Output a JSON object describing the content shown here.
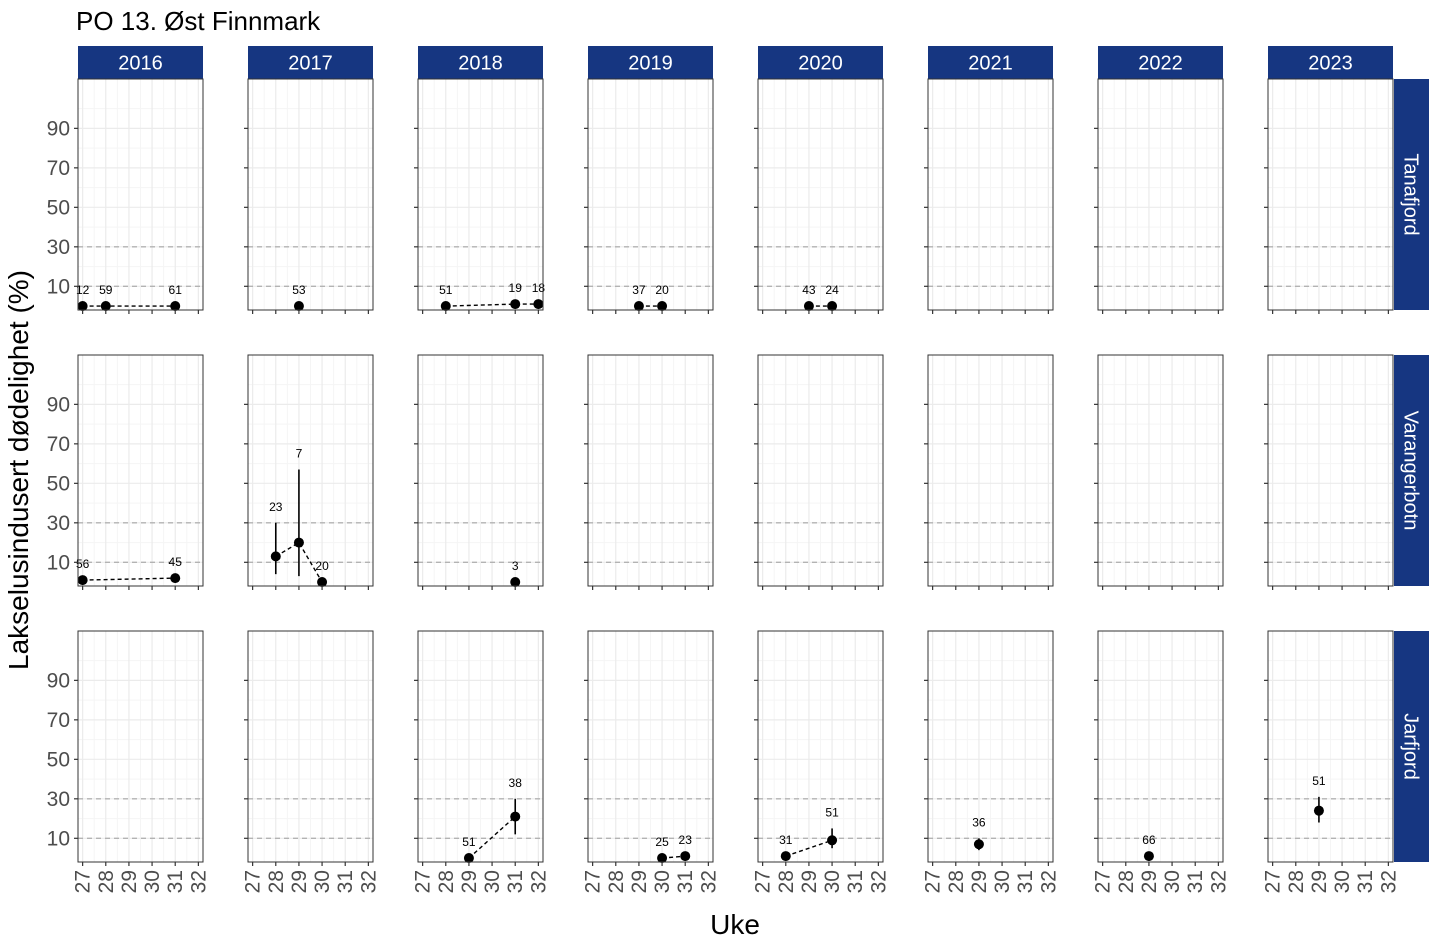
{
  "chart_data": {
    "type": "scatter",
    "title": "PO 13. Øst Finnmark",
    "xlabel": "Uke",
    "ylabel": "Lakselusindusert dødelighet (%)",
    "columns": [
      "2016",
      "2017",
      "2018",
      "2019",
      "2020",
      "2021",
      "2022",
      "2023"
    ],
    "rows": [
      "Tanafjord",
      "Varangerbotn",
      "Jarfjord"
    ],
    "xlim": [
      26.8,
      32.2
    ],
    "ylim": [
      -2,
      115
    ],
    "x_ticks": [
      27,
      28,
      29,
      30,
      31,
      32
    ],
    "x_tick_labels": [
      "27",
      "28",
      "29",
      "30",
      "31",
      "32"
    ],
    "y_ticks": [
      10,
      30,
      50,
      70,
      90
    ],
    "y_tick_labels": [
      "10",
      "30",
      "50",
      "70",
      "90"
    ],
    "reference_lines": [
      10,
      30
    ],
    "grid": true,
    "series": [
      {
        "row": "Tanafjord",
        "col": "2016",
        "points": [
          {
            "x": 27,
            "y": 0,
            "label": "12"
          },
          {
            "x": 28,
            "y": 0,
            "label": "59"
          },
          {
            "x": 31,
            "y": 0,
            "label": "61"
          }
        ]
      },
      {
        "row": "Tanafjord",
        "col": "2017",
        "points": [
          {
            "x": 29,
            "y": 0,
            "label": "53"
          }
        ]
      },
      {
        "row": "Tanafjord",
        "col": "2018",
        "points": [
          {
            "x": 28,
            "y": 0,
            "label": "51"
          },
          {
            "x": 31,
            "y": 1,
            "label": "19"
          },
          {
            "x": 32,
            "y": 1,
            "label": "18"
          }
        ]
      },
      {
        "row": "Tanafjord",
        "col": "2019",
        "points": [
          {
            "x": 29,
            "y": 0,
            "label": "37"
          },
          {
            "x": 30,
            "y": 0,
            "label": "20"
          }
        ]
      },
      {
        "row": "Tanafjord",
        "col": "2020",
        "points": [
          {
            "x": 29,
            "y": 0,
            "label": "43"
          },
          {
            "x": 30,
            "y": 0,
            "label": "24"
          }
        ]
      },
      {
        "row": "Varangerbotn",
        "col": "2016",
        "points": [
          {
            "x": 27,
            "y": 1,
            "label": "56"
          },
          {
            "x": 31,
            "y": 2,
            "label": "45"
          }
        ]
      },
      {
        "row": "Varangerbotn",
        "col": "2017",
        "points": [
          {
            "x": 28,
            "y": 13,
            "ymin": 4,
            "ymax": 30,
            "label": "23"
          },
          {
            "x": 29,
            "y": 20,
            "ymin": 3,
            "ymax": 57,
            "label": "7"
          },
          {
            "x": 30,
            "y": 0,
            "label": "20"
          }
        ]
      },
      {
        "row": "Varangerbotn",
        "col": "2018",
        "points": [
          {
            "x": 31,
            "y": 0,
            "label": "3"
          }
        ]
      },
      {
        "row": "Jarfjord",
        "col": "2018",
        "points": [
          {
            "x": 29,
            "y": 0,
            "label": "51"
          },
          {
            "x": 31,
            "y": 21,
            "ymin": 12,
            "ymax": 30,
            "label": "38"
          }
        ]
      },
      {
        "row": "Jarfjord",
        "col": "2019",
        "points": [
          {
            "x": 30,
            "y": 0,
            "label": "25"
          },
          {
            "x": 31,
            "y": 1,
            "label": "23"
          }
        ]
      },
      {
        "row": "Jarfjord",
        "col": "2020",
        "points": [
          {
            "x": 28,
            "y": 1,
            "label": "31"
          },
          {
            "x": 30,
            "y": 9,
            "ymin": 5,
            "ymax": 15,
            "label": "51"
          }
        ]
      },
      {
        "row": "Jarfjord",
        "col": "2021",
        "points": [
          {
            "x": 29,
            "y": 7,
            "ymin": 4,
            "ymax": 10,
            "label": "36"
          }
        ]
      },
      {
        "row": "Jarfjord",
        "col": "2022",
        "points": [
          {
            "x": 29,
            "y": 1,
            "label": "66"
          }
        ]
      },
      {
        "row": "Jarfjord",
        "col": "2023",
        "points": [
          {
            "x": 29,
            "y": 24,
            "ymin": 18,
            "ymax": 31,
            "label": "51"
          }
        ]
      }
    ]
  },
  "colors": {
    "strip_bg": "#163681",
    "strip_text": "#ffffff",
    "point": "#000000",
    "grid_major": "#ebebeb",
    "grid_minor": "#f5f5f5",
    "ref_line": "#b3b3b3",
    "panel_border": "#333333",
    "tick_label": "#4d4d4d"
  }
}
